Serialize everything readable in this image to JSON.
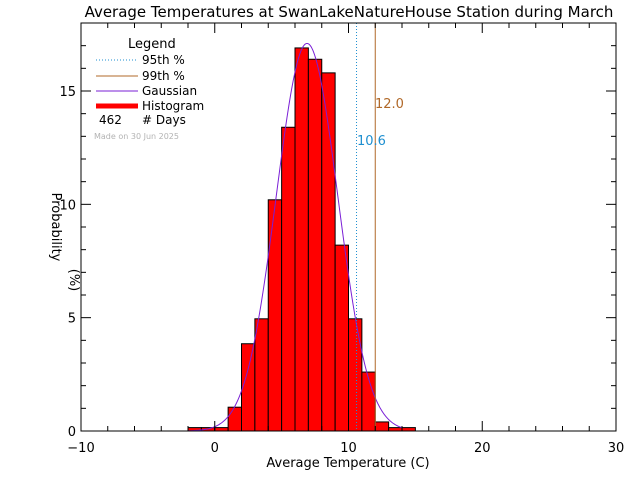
{
  "chart_data": {
    "type": "bar",
    "title": "Average Temperatures at SwanLakeNatureHouse Station during March",
    "xlabel": "Average Temperature (C)",
    "ylabel": "Probability",
    "ylabel_units": "(%)",
    "xlim": [
      -10,
      30
    ],
    "ylim": [
      0,
      18
    ],
    "x_ticks": [
      -10,
      0,
      10,
      20,
      30
    ],
    "x_tick_labels": [
      "−10",
      "0",
      "10",
      "20",
      "30"
    ],
    "y_ticks": [
      0,
      5,
      10,
      15
    ],
    "y_tick_labels": [
      "0",
      "5",
      "10",
      "15"
    ],
    "bin_width": 1,
    "bins": [
      {
        "x0": -2,
        "value": 0.15
      },
      {
        "x0": -1,
        "value": 0.15
      },
      {
        "x0": 0,
        "value": 0.15
      },
      {
        "x0": 1,
        "value": 1.05
      },
      {
        "x0": 2,
        "value": 3.85
      },
      {
        "x0": 3,
        "value": 4.95
      },
      {
        "x0": 4,
        "value": 10.2
      },
      {
        "x0": 5,
        "value": 13.4
      },
      {
        "x0": 6,
        "value": 16.9
      },
      {
        "x0": 7,
        "value": 16.4
      },
      {
        "x0": 8,
        "value": 15.8
      },
      {
        "x0": 9,
        "value": 8.2
      },
      {
        "x0": 10,
        "value": 4.95
      },
      {
        "x0": 11,
        "value": 2.6
      },
      {
        "x0": 12,
        "value": 0.4
      },
      {
        "x0": 13,
        "value": 0.15
      },
      {
        "x0": 14,
        "value": 0.15
      }
    ],
    "gaussian": {
      "mean": 6.9,
      "sd": 2.3,
      "peak": 17.1
    },
    "percentile_95": 10.6,
    "percentile_99": 12.0,
    "percentile_95_label": "10.6",
    "percentile_99_label": "12.0",
    "days": "462",
    "days_label": "# Days",
    "made_on": "Made on 30 Jun 2025",
    "legend": {
      "title": "Legend",
      "placement": "top-left",
      "entries": [
        {
          "label": "95th %",
          "style": "dotted",
          "color": "#1e8fd0"
        },
        {
          "label": "99th %",
          "style": "solid",
          "color": "#b06828"
        },
        {
          "label": "Gaussian",
          "style": "solid",
          "color": "#7a1fd6"
        },
        {
          "label": "Histogram",
          "style": "thick",
          "color": "#ff0000"
        }
      ]
    },
    "colors": {
      "histogram": "#ff0000",
      "gaussian": "#7a1fd6",
      "p95": "#1e8fd0",
      "p99": "#b06828"
    }
  }
}
